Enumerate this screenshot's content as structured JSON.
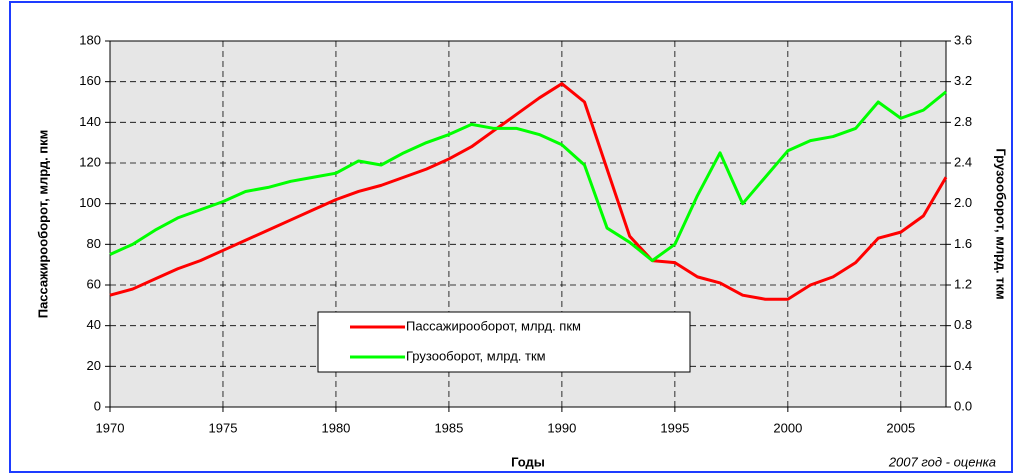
{
  "chart_data": {
    "type": "line",
    "x": [
      1970,
      1971,
      1972,
      1973,
      1974,
      1975,
      1976,
      1977,
      1978,
      1979,
      1980,
      1981,
      1982,
      1983,
      1984,
      1985,
      1986,
      1987,
      1988,
      1989,
      1990,
      1991,
      1992,
      1993,
      1994,
      1995,
      1996,
      1997,
      1998,
      1999,
      2000,
      2001,
      2002,
      2003,
      2004,
      2005,
      2006,
      2007
    ],
    "series": [
      {
        "name": "Пассажирооборот, млрд. пкм",
        "color": "#ff0000",
        "values": [
          55,
          58,
          63,
          68,
          72,
          77,
          82,
          87,
          92,
          97,
          102,
          106,
          109,
          113,
          117,
          122,
          128,
          136,
          144,
          152,
          159,
          150,
          117,
          84,
          72,
          71,
          64,
          61,
          55,
          53,
          53,
          60,
          64,
          71,
          83,
          86,
          94,
          113
        ]
      },
      {
        "name": "Грузооборот, млрд. ткм",
        "color": "#00ff00",
        "axis": "y2",
        "values": [
          1.5,
          1.6,
          1.74,
          1.86,
          1.94,
          2.02,
          2.12,
          2.16,
          2.22,
          2.26,
          2.3,
          2.42,
          2.38,
          2.5,
          2.6,
          2.68,
          2.78,
          2.74,
          2.74,
          2.68,
          2.58,
          2.38,
          1.76,
          1.62,
          1.44,
          1.6,
          2.08,
          2.5,
          2.0,
          2.26,
          2.52,
          2.62,
          2.66,
          2.74,
          3.0,
          2.84,
          2.92,
          3.1
        ]
      }
    ],
    "xlim": [
      1970,
      2007
    ],
    "xticks": [
      1970,
      1975,
      1980,
      1985,
      1990,
      1995,
      2000,
      2005
    ],
    "ylim": [
      0,
      180
    ],
    "yticks": [
      0,
      20,
      40,
      60,
      80,
      100,
      120,
      140,
      160,
      180
    ],
    "y2lim": [
      0,
      3.6
    ],
    "y2ticks": [
      {
        "value": 0,
        "label": "0.0"
      },
      0.4,
      0.8,
      1.2,
      1.6,
      {
        "value": 2,
        "label": "2.0"
      },
      2.4,
      2.8,
      3.2,
      3.6
    ],
    "ylabel": "Пассажирооборот, млрд. пкм",
    "y2label": "Грузооборот, млрд. ткм",
    "xlabel": "Годы",
    "annotation": "2007 год - оценка",
    "grid": true
  }
}
